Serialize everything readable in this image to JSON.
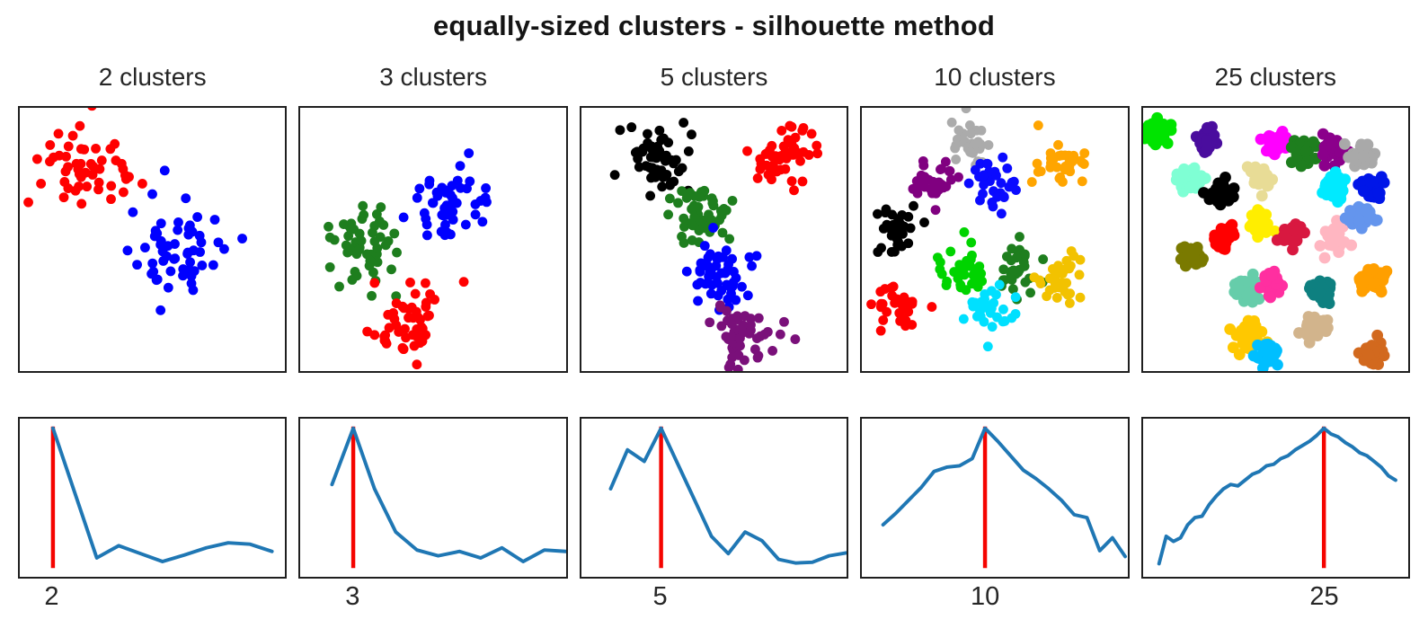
{
  "title": "equally-sized clusters - silhouette method",
  "colors": {
    "curve_blue": "#1f77b4",
    "best_k_red": "#f50400",
    "axis_frame": "#1f1f1f",
    "background": "#ffffff"
  },
  "chart_data": [
    {
      "header": "2 clusters",
      "best_k": 2,
      "tick_label": "2",
      "scatter": {
        "type": "scatter",
        "dot_r": 5.5,
        "clusters": [
          {
            "color": "#ff0000",
            "cx": 0.24,
            "cy": 0.215,
            "spread": 0.093,
            "n": 52
          },
          {
            "color": "#0000ff",
            "cx": 0.6,
            "cy": 0.555,
            "spread": 0.095,
            "n": 55
          }
        ]
      },
      "silhouette": {
        "type": "line",
        "k_min": 2,
        "x0_frac": 0.125,
        "step_frac": 0.0825,
        "red_x_frac": 0.125,
        "scores_normalized": [
          0.97,
          0.52,
          0.07,
          0.155,
          0.1,
          0.045,
          0.09,
          0.14,
          0.175,
          0.165,
          0.115
        ]
      }
    },
    {
      "header": "3 clusters",
      "best_k": 3,
      "tick_label": "3",
      "scatter": {
        "type": "scatter",
        "dot_r": 5.5,
        "clusters": [
          {
            "color": "#1e7e1e",
            "cx": 0.25,
            "cy": 0.51,
            "spread": 0.075,
            "n": 52
          },
          {
            "color": "#0000ff",
            "cx": 0.555,
            "cy": 0.375,
            "spread": 0.075,
            "n": 52
          },
          {
            "color": "#ff0000",
            "cx": 0.415,
            "cy": 0.815,
            "spread": 0.068,
            "n": 50
          },
          {
            "color": "#ff0000",
            "cx": 0.615,
            "cy": 0.655,
            "spread": 0.002,
            "n": 1
          }
        ]
      },
      "silhouette": {
        "type": "line",
        "k_min": 2,
        "x0_frac": 0.12,
        "step_frac": 0.08,
        "red_x_frac": 0.2,
        "scores_normalized": [
          0.58,
          0.97,
          0.55,
          0.25,
          0.125,
          0.085,
          0.115,
          0.07,
          0.14,
          0.045,
          0.125,
          0.115
        ]
      }
    },
    {
      "header": "5 clusters",
      "best_k": 5,
      "tick_label": "5",
      "scatter": {
        "type": "scatter",
        "dot_r": 5.5,
        "clusters": [
          {
            "color": "#000000",
            "cx": 0.295,
            "cy": 0.2,
            "spread": 0.063,
            "n": 52
          },
          {
            "color": "#ff0000",
            "cx": 0.74,
            "cy": 0.185,
            "spread": 0.063,
            "n": 50
          },
          {
            "color": "#1e7e1e",
            "cx": 0.45,
            "cy": 0.41,
            "spread": 0.06,
            "n": 52
          },
          {
            "color": "#0000ff",
            "cx": 0.515,
            "cy": 0.635,
            "spread": 0.058,
            "n": 50
          },
          {
            "color": "#7a107a",
            "cx": 0.605,
            "cy": 0.87,
            "spread": 0.058,
            "n": 52
          }
        ]
      },
      "silhouette": {
        "type": "line",
        "k_min": 2,
        "x0_frac": 0.11,
        "step_frac": 0.0633,
        "red_x_frac": 0.3,
        "scores_normalized": [
          0.55,
          0.82,
          0.74,
          0.97,
          0.72,
          0.47,
          0.22,
          0.1,
          0.25,
          0.19,
          0.06,
          0.035,
          0.04,
          0.085,
          0.105
        ]
      }
    },
    {
      "header": "10 clusters",
      "best_k": 10,
      "tick_label": "10",
      "scatter": {
        "type": "scatter",
        "dot_r": 5.5,
        "clusters": [
          {
            "color": "#ababab",
            "cx": 0.4,
            "cy": 0.125,
            "spread": 0.046,
            "n": 32
          },
          {
            "color": "#ffa500",
            "cx": 0.745,
            "cy": 0.205,
            "spread": 0.046,
            "n": 32
          },
          {
            "color": "#800080",
            "cx": 0.285,
            "cy": 0.285,
            "spread": 0.046,
            "n": 32
          },
          {
            "color": "#0a0aff",
            "cx": 0.5,
            "cy": 0.275,
            "spread": 0.046,
            "n": 32
          },
          {
            "color": "#000000",
            "cx": 0.145,
            "cy": 0.455,
            "spread": 0.046,
            "n": 32
          },
          {
            "color": "#00d400",
            "cx": 0.375,
            "cy": 0.615,
            "spread": 0.046,
            "n": 32
          },
          {
            "color": "#1e7e1e",
            "cx": 0.585,
            "cy": 0.61,
            "spread": 0.046,
            "n": 32
          },
          {
            "color": "#f2c200",
            "cx": 0.755,
            "cy": 0.645,
            "spread": 0.046,
            "n": 32
          },
          {
            "color": "#00e0ff",
            "cx": 0.475,
            "cy": 0.755,
            "spread": 0.046,
            "n": 32
          },
          {
            "color": "#ff0000",
            "cx": 0.14,
            "cy": 0.775,
            "spread": 0.046,
            "n": 32
          }
        ]
      },
      "silhouette": {
        "type": "line",
        "k_min": 2,
        "x0_frac": 0.08,
        "step_frac": 0.048,
        "red_x_frac": 0.464,
        "scores_normalized": [
          0.3,
          0.38,
          0.47,
          0.56,
          0.67,
          0.7,
          0.71,
          0.76,
          0.97,
          0.88,
          0.78,
          0.68,
          0.62,
          0.55,
          0.47,
          0.37,
          0.35,
          0.12,
          0.21,
          0.08
        ]
      }
    },
    {
      "header": "25 clusters",
      "best_k": 25,
      "tick_label": "25",
      "scatter": {
        "type": "scatter",
        "dot_r": 6.5,
        "clusters": [
          {
            "color": "#00e400",
            "cx": 0.06,
            "cy": 0.085,
            "spread": 0.022,
            "n": 40
          },
          {
            "color": "#4a0d9e",
            "cx": 0.235,
            "cy": 0.125,
            "spread": 0.022,
            "n": 40
          },
          {
            "color": "#ff00ff",
            "cx": 0.5,
            "cy": 0.135,
            "spread": 0.022,
            "n": 40
          },
          {
            "color": "#1e7e1e",
            "cx": 0.6,
            "cy": 0.17,
            "spread": 0.022,
            "n": 40
          },
          {
            "color": "#8b008b",
            "cx": 0.715,
            "cy": 0.16,
            "spread": 0.024,
            "n": 40
          },
          {
            "color": "#a9a9a9",
            "cx": 0.82,
            "cy": 0.185,
            "spread": 0.022,
            "n": 40
          },
          {
            "color": "#7fffd4",
            "cx": 0.18,
            "cy": 0.28,
            "spread": 0.024,
            "n": 40
          },
          {
            "color": "#000000",
            "cx": 0.295,
            "cy": 0.325,
            "spread": 0.022,
            "n": 40
          },
          {
            "color": "#e8dc96",
            "cx": 0.445,
            "cy": 0.265,
            "spread": 0.022,
            "n": 40
          },
          {
            "color": "#00eaff",
            "cx": 0.72,
            "cy": 0.305,
            "spread": 0.024,
            "n": 40
          },
          {
            "color": "#0016e8",
            "cx": 0.865,
            "cy": 0.295,
            "spread": 0.022,
            "n": 40
          },
          {
            "color": "#ffee00",
            "cx": 0.435,
            "cy": 0.435,
            "spread": 0.022,
            "n": 40
          },
          {
            "color": "#ff0000",
            "cx": 0.305,
            "cy": 0.49,
            "spread": 0.02,
            "n": 40
          },
          {
            "color": "#d81840",
            "cx": 0.56,
            "cy": 0.485,
            "spread": 0.02,
            "n": 40
          },
          {
            "color": "#ffb6c1",
            "cx": 0.725,
            "cy": 0.495,
            "spread": 0.022,
            "n": 40
          },
          {
            "color": "#6495ed",
            "cx": 0.825,
            "cy": 0.42,
            "spread": 0.022,
            "n": 40
          },
          {
            "color": "#7a7a00",
            "cx": 0.185,
            "cy": 0.565,
            "spread": 0.024,
            "n": 40
          },
          {
            "color": "#66cdaa",
            "cx": 0.395,
            "cy": 0.685,
            "spread": 0.024,
            "n": 40
          },
          {
            "color": "#ff2fa0",
            "cx": 0.49,
            "cy": 0.665,
            "spread": 0.02,
            "n": 40
          },
          {
            "color": "#0e8080",
            "cx": 0.675,
            "cy": 0.7,
            "spread": 0.02,
            "n": 40
          },
          {
            "color": "#ff9f00",
            "cx": 0.86,
            "cy": 0.655,
            "spread": 0.022,
            "n": 40
          },
          {
            "color": "#ffc800",
            "cx": 0.4,
            "cy": 0.875,
            "spread": 0.024,
            "n": 40
          },
          {
            "color": "#d2b48c",
            "cx": 0.645,
            "cy": 0.83,
            "spread": 0.02,
            "n": 40
          },
          {
            "color": "#00bfff",
            "cx": 0.475,
            "cy": 0.925,
            "spread": 0.022,
            "n": 40
          },
          {
            "color": "#d2691e",
            "cx": 0.865,
            "cy": 0.935,
            "spread": 0.022,
            "n": 40
          }
        ]
      },
      "silhouette": {
        "type": "line",
        "k_min": 2,
        "x0_frac": 0.06,
        "step_frac": 0.027,
        "red_x_frac": 0.681,
        "scores_normalized": [
          0.03,
          0.22,
          0.185,
          0.21,
          0.3,
          0.35,
          0.36,
          0.44,
          0.5,
          0.55,
          0.58,
          0.57,
          0.61,
          0.65,
          0.67,
          0.71,
          0.72,
          0.76,
          0.78,
          0.82,
          0.85,
          0.88,
          0.92,
          0.97,
          0.93,
          0.91,
          0.87,
          0.84,
          0.8,
          0.78,
          0.74,
          0.7,
          0.64,
          0.61
        ]
      }
    }
  ]
}
